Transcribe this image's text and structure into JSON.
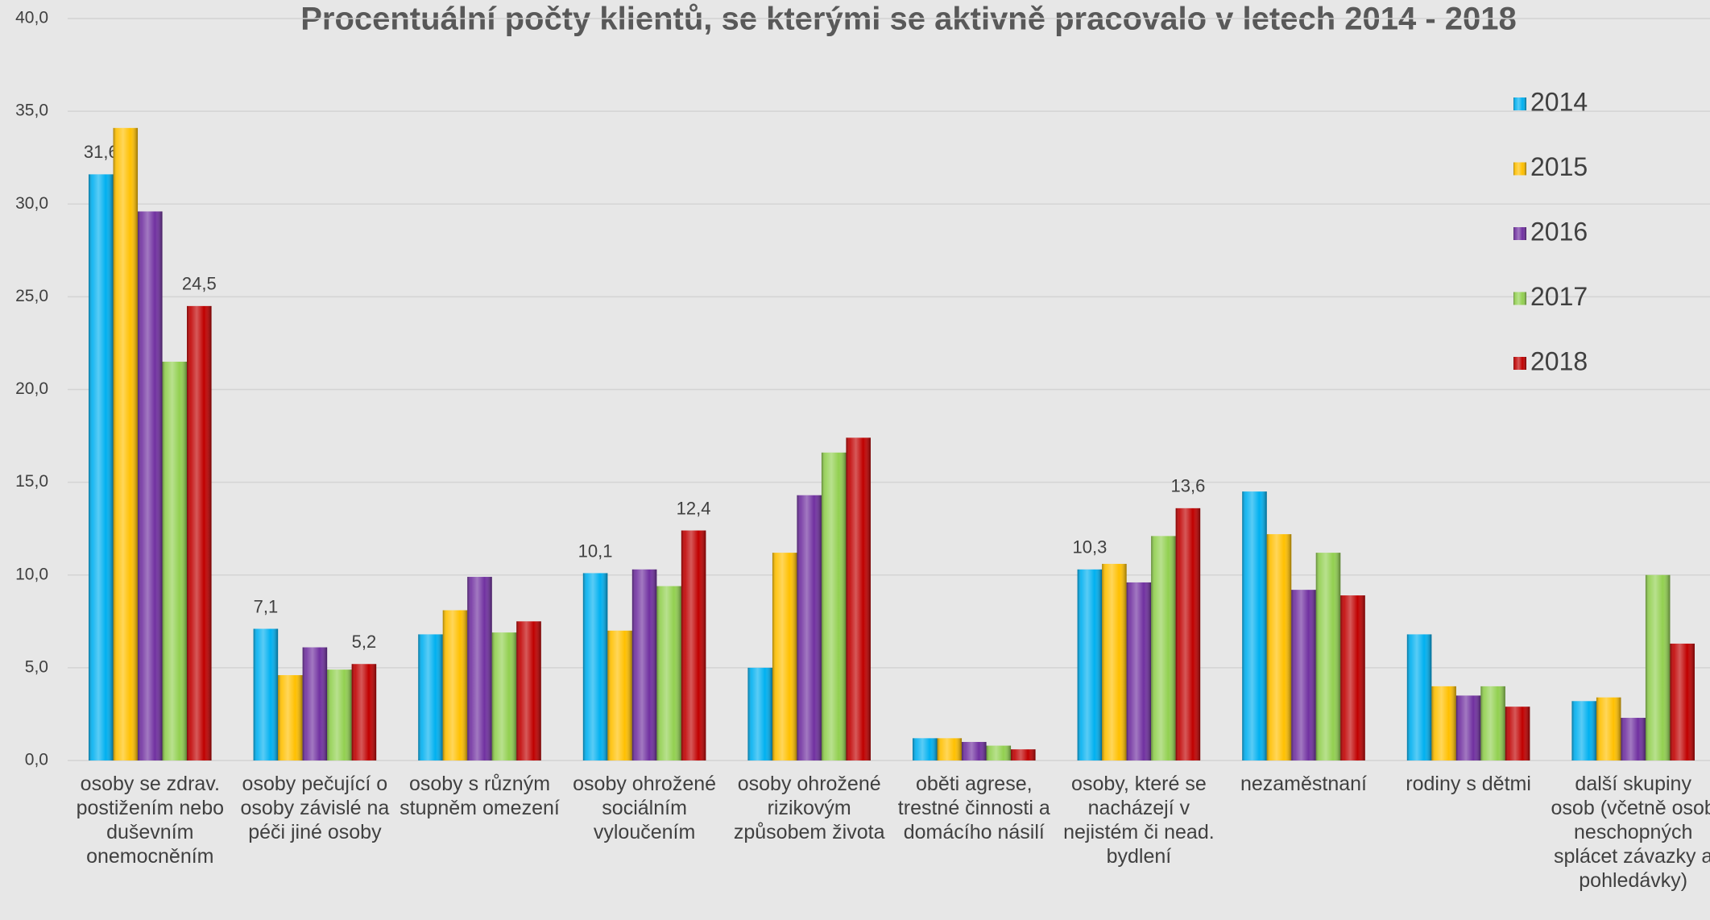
{
  "chart_data": {
    "type": "bar",
    "title": "Procentuální počty klientů, se kterými se aktivně pracovalo v letech 2014 - 2018",
    "categories": [
      "osoby se zdrav. postižením nebo duševním onemocněním",
      "osoby pečující o osoby závislé na péči jiné osoby",
      "osoby s různým stupněm omezení",
      "osoby ohrožené sociálním vyloučením",
      "osoby ohrožené rizikovým způsobem života",
      "oběti agrese, trestné činnosti a domácího násilí",
      "osoby, které se nacházejí v nejistém či nead. bydlení",
      "nezaměstnaní",
      "rodiny s dětmi",
      "další skupiny osob (včetně osob neschopných splácet závazky a pohledávky)"
    ],
    "series": [
      {
        "name": "2014",
        "color": "#00b0f0",
        "values": [
          31.6,
          7.1,
          6.8,
          10.1,
          5.0,
          1.2,
          10.3,
          14.5,
          6.8,
          3.2
        ],
        "value_labels": [
          "31,6",
          "7,1",
          null,
          "10,1",
          null,
          null,
          "10,3",
          null,
          null,
          null
        ]
      },
      {
        "name": "2015",
        "color": "#ffc000",
        "values": [
          34.1,
          4.6,
          8.1,
          7.0,
          11.2,
          1.2,
          10.6,
          12.2,
          4.0,
          3.4
        ]
      },
      {
        "name": "2016",
        "color": "#7030a0",
        "values": [
          29.6,
          6.1,
          9.9,
          10.3,
          14.3,
          1.0,
          9.6,
          9.2,
          3.5,
          2.3
        ]
      },
      {
        "name": "2017",
        "color": "#92d050",
        "values": [
          21.5,
          4.9,
          6.9,
          9.4,
          16.6,
          0.8,
          12.1,
          11.2,
          4.0,
          10.0
        ]
      },
      {
        "name": "2018",
        "color": "#c00000",
        "values": [
          24.5,
          5.2,
          7.5,
          12.4,
          17.4,
          0.6,
          13.6,
          8.9,
          2.9,
          6.3
        ],
        "value_labels": [
          "24,5",
          "5,2",
          null,
          "12,4",
          null,
          null,
          "13,6",
          null,
          null,
          null
        ]
      }
    ],
    "ylim": [
      0,
      40
    ],
    "yticks": [
      {
        "value": 0,
        "label": "0,0"
      },
      {
        "value": 5,
        "label": "5,0"
      },
      {
        "value": 10,
        "label": "10,0"
      },
      {
        "value": 15,
        "label": "15,0"
      },
      {
        "value": 20,
        "label": "20,0"
      },
      {
        "value": 25,
        "label": "25,0"
      },
      {
        "value": 30,
        "label": "30,0"
      },
      {
        "value": 35,
        "label": "35,0"
      },
      {
        "value": 40,
        "label": "40,0"
      }
    ],
    "grid": true,
    "legend": "right"
  }
}
